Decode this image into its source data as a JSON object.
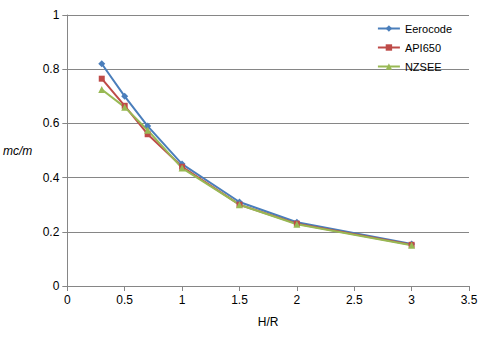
{
  "chart_data": {
    "type": "line",
    "x_label": "H/R",
    "y_label": "mc/m",
    "x": [
      0.3,
      0.5,
      0.7,
      1,
      1.5,
      2,
      3
    ],
    "series": [
      {
        "name": "Eerocode",
        "color": "#4a7ebb",
        "marker": "diamond",
        "values": [
          0.82,
          0.7,
          0.59,
          0.45,
          0.31,
          0.235,
          0.155
        ]
      },
      {
        "name": "API650",
        "color": "#be4b48",
        "marker": "square",
        "values": [
          0.765,
          0.665,
          0.56,
          0.44,
          0.3,
          0.23,
          0.152
        ]
      },
      {
        "name": "NZSEE",
        "color": "#98b954",
        "marker": "triangle",
        "values": [
          0.725,
          0.66,
          0.575,
          0.435,
          0.3,
          0.228,
          0.15
        ]
      }
    ],
    "xlim": [
      0,
      3.5
    ],
    "xticks": [
      0,
      0.5,
      1,
      1.5,
      2,
      2.5,
      3,
      3.5
    ],
    "ylim": [
      0,
      1
    ],
    "yticks": [
      0,
      0.2,
      0.4,
      0.6,
      0.8,
      1
    ],
    "grid": true,
    "legend": "upper right"
  }
}
